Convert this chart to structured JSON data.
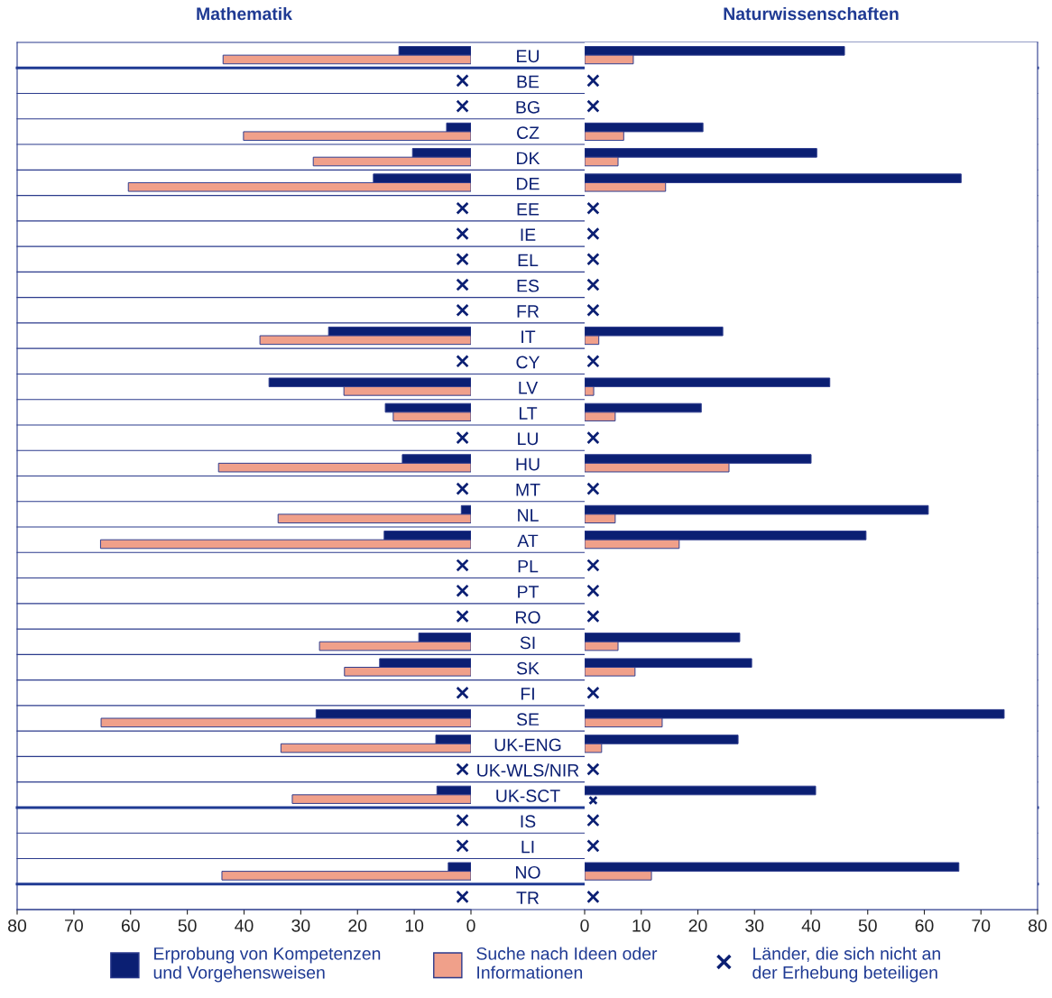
{
  "chart_data": [
    {
      "type": "bar",
      "orientation": "horizontal",
      "title": "Mathematik",
      "categories": [
        "EU",
        "BE",
        "BG",
        "CZ",
        "DK",
        "DE",
        "EE",
        "IE",
        "EL",
        "ES",
        "FR",
        "IT",
        "CY",
        "LV",
        "LT",
        "LU",
        "HU",
        "MT",
        "NL",
        "AT",
        "PL",
        "PT",
        "RO",
        "SI",
        "SK",
        "FI",
        "SE",
        "UK-ENG",
        "UK-WLS/NIR",
        "UK-SCT",
        "IS",
        "LI",
        "NO",
        "TR"
      ],
      "series": [
        {
          "name": "Erprobung von Kompetenzen\nund Vorgehensweisen",
          "color": "#0b1f73",
          "values": [
            12.7,
            null,
            null,
            4.3,
            10.3,
            17.2,
            null,
            null,
            null,
            null,
            null,
            25.1,
            null,
            35.6,
            15.1,
            null,
            12.1,
            null,
            1.7,
            15.3,
            null,
            null,
            null,
            9.2,
            16.1,
            null,
            27.3,
            6.2,
            null,
            6.0,
            null,
            null,
            4.0,
            null
          ]
        },
        {
          "name": "Suche nach Ideen oder\nInformationen",
          "color": "#f0a08a",
          "values": [
            43.7,
            null,
            null,
            40.1,
            27.8,
            60.4,
            null,
            null,
            null,
            null,
            null,
            37.2,
            null,
            22.4,
            13.7,
            null,
            44.5,
            null,
            34.0,
            65.3,
            null,
            null,
            null,
            26.7,
            22.3,
            null,
            65.2,
            33.5,
            null,
            31.5,
            null,
            null,
            43.9,
            null
          ]
        },
        {
          "name": "Länder, die sich nicht an\nder Erhebung beteiligen",
          "type": "scatter",
          "marker": "cross",
          "color": "#0b1f73",
          "values": [
            null,
            1.5,
            1.5,
            null,
            null,
            null,
            1.5,
            1.5,
            1.5,
            1.5,
            1.5,
            null,
            1.5,
            null,
            null,
            1.5,
            null,
            1.5,
            null,
            null,
            1.5,
            1.5,
            1.5,
            null,
            null,
            1.5,
            null,
            null,
            1.5,
            null,
            1.5,
            1.5,
            null,
            1.5
          ]
        }
      ],
      "xlim": [
        80,
        0
      ],
      "xticks": [
        80,
        70,
        60,
        50,
        40,
        30,
        20,
        10,
        0
      ],
      "legend": "bottom"
    },
    {
      "type": "bar",
      "orientation": "horizontal",
      "title": "Naturwissenschaften",
      "tick_labels": "x",
      "categories": [
        null,
        null,
        null,
        null,
        null,
        null,
        null,
        null,
        null,
        null,
        null,
        null,
        null,
        null,
        null,
        null,
        null,
        null,
        null,
        null,
        null,
        null,
        null,
        null,
        null,
        null,
        null,
        null,
        null,
        null,
        null,
        null,
        null,
        null
      ],
      "series": [
        {
          "color": "#0b1f73",
          "values": [
            45.9,
            null,
            null,
            20.9,
            41.0,
            66.5,
            null,
            null,
            null,
            null,
            null,
            24.4,
            null,
            43.3,
            20.6,
            null,
            40.0,
            null,
            60.7,
            49.7,
            null,
            null,
            null,
            27.4,
            29.5,
            null,
            74.1,
            27.1,
            null,
            40.8,
            null,
            null,
            66.1,
            null
          ]
        },
        {
          "color": "#f0a08a",
          "values": [
            8.6,
            null,
            null,
            6.9,
            5.9,
            14.3,
            null,
            null,
            null,
            null,
            null,
            2.5,
            null,
            1.6,
            5.4,
            null,
            25.5,
            null,
            5.4,
            16.7,
            null,
            null,
            null,
            5.9,
            8.9,
            null,
            13.7,
            3.0,
            null,
            null,
            null,
            null,
            11.8,
            null
          ]
        },
        {
          "type": "scatter",
          "marker": "cross",
          "color": "#0b1f73",
          "values": [
            null,
            1.5,
            1.5,
            null,
            null,
            null,
            1.5,
            1.5,
            1.5,
            1.5,
            1.5,
            null,
            1.5,
            null,
            null,
            1.5,
            null,
            1.5,
            null,
            null,
            1.5,
            1.5,
            1.5,
            null,
            null,
            1.5,
            null,
            null,
            1.5,
            1.5,
            1.5,
            1.5,
            null,
            1.5
          ]
        }
      ],
      "xlim": [
        0,
        80
      ],
      "xticks": [
        0,
        10,
        20,
        30,
        40,
        50,
        60,
        70,
        80
      ]
    }
  ]
}
